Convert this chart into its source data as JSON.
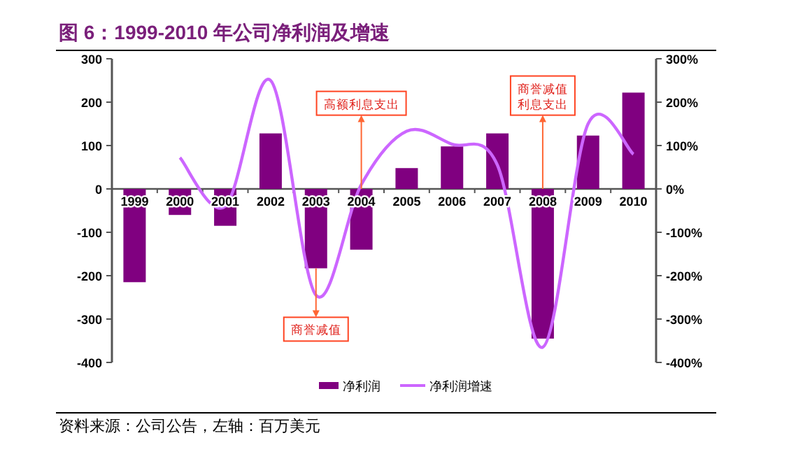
{
  "chart_data": {
    "type": "bar",
    "title": "图 6：1999-2010 年公司净利润及增速",
    "categories": [
      "1999",
      "2000",
      "2001",
      "2002",
      "2003",
      "2004",
      "2005",
      "2006",
      "2007",
      "2008",
      "2009",
      "2010"
    ],
    "series": [
      {
        "name": "净利润",
        "color": "#800080",
        "values": [
          -215,
          -60,
          -85,
          128,
          -183,
          -140,
          48,
          98,
          128,
          -345,
          123,
          222
        ]
      },
      {
        "name": "净利润增速",
        "type": "line",
        "axis": "y2",
        "color": "#cc66ff",
        "values": [
          null,
          72,
          -40,
          250,
          -245,
          10,
          133,
          103,
          55,
          -365,
          150,
          80
        ]
      }
    ],
    "ylim": [
      -400,
      300
    ],
    "yticks": [
      -400,
      -300,
      -200,
      -100,
      0,
      100,
      200,
      300
    ],
    "y2lim": [
      -400,
      300
    ],
    "y2ticks": [
      {
        "value": -400,
        "label": "-400%"
      },
      {
        "value": -300,
        "label": "-300%"
      },
      {
        "value": -200,
        "label": "-200%"
      },
      {
        "value": -100,
        "label": "-100%"
      },
      {
        "value": 0,
        "label": "0%"
      },
      {
        "value": 100,
        "label": "100%"
      },
      {
        "value": 200,
        "label": "200%"
      },
      {
        "value": 300,
        "label": "300%"
      }
    ],
    "legend": "bottom",
    "annotations": [
      {
        "text": "商誉减值",
        "x": "2003",
        "y": -183
      },
      {
        "text": "高额利息支出",
        "x": "2004",
        "y": 0
      },
      {
        "text": "商誉减值利息支出",
        "x": "2008",
        "y": 0
      },
      "资料来源：公司公告，左轴：百万美元"
    ]
  }
}
